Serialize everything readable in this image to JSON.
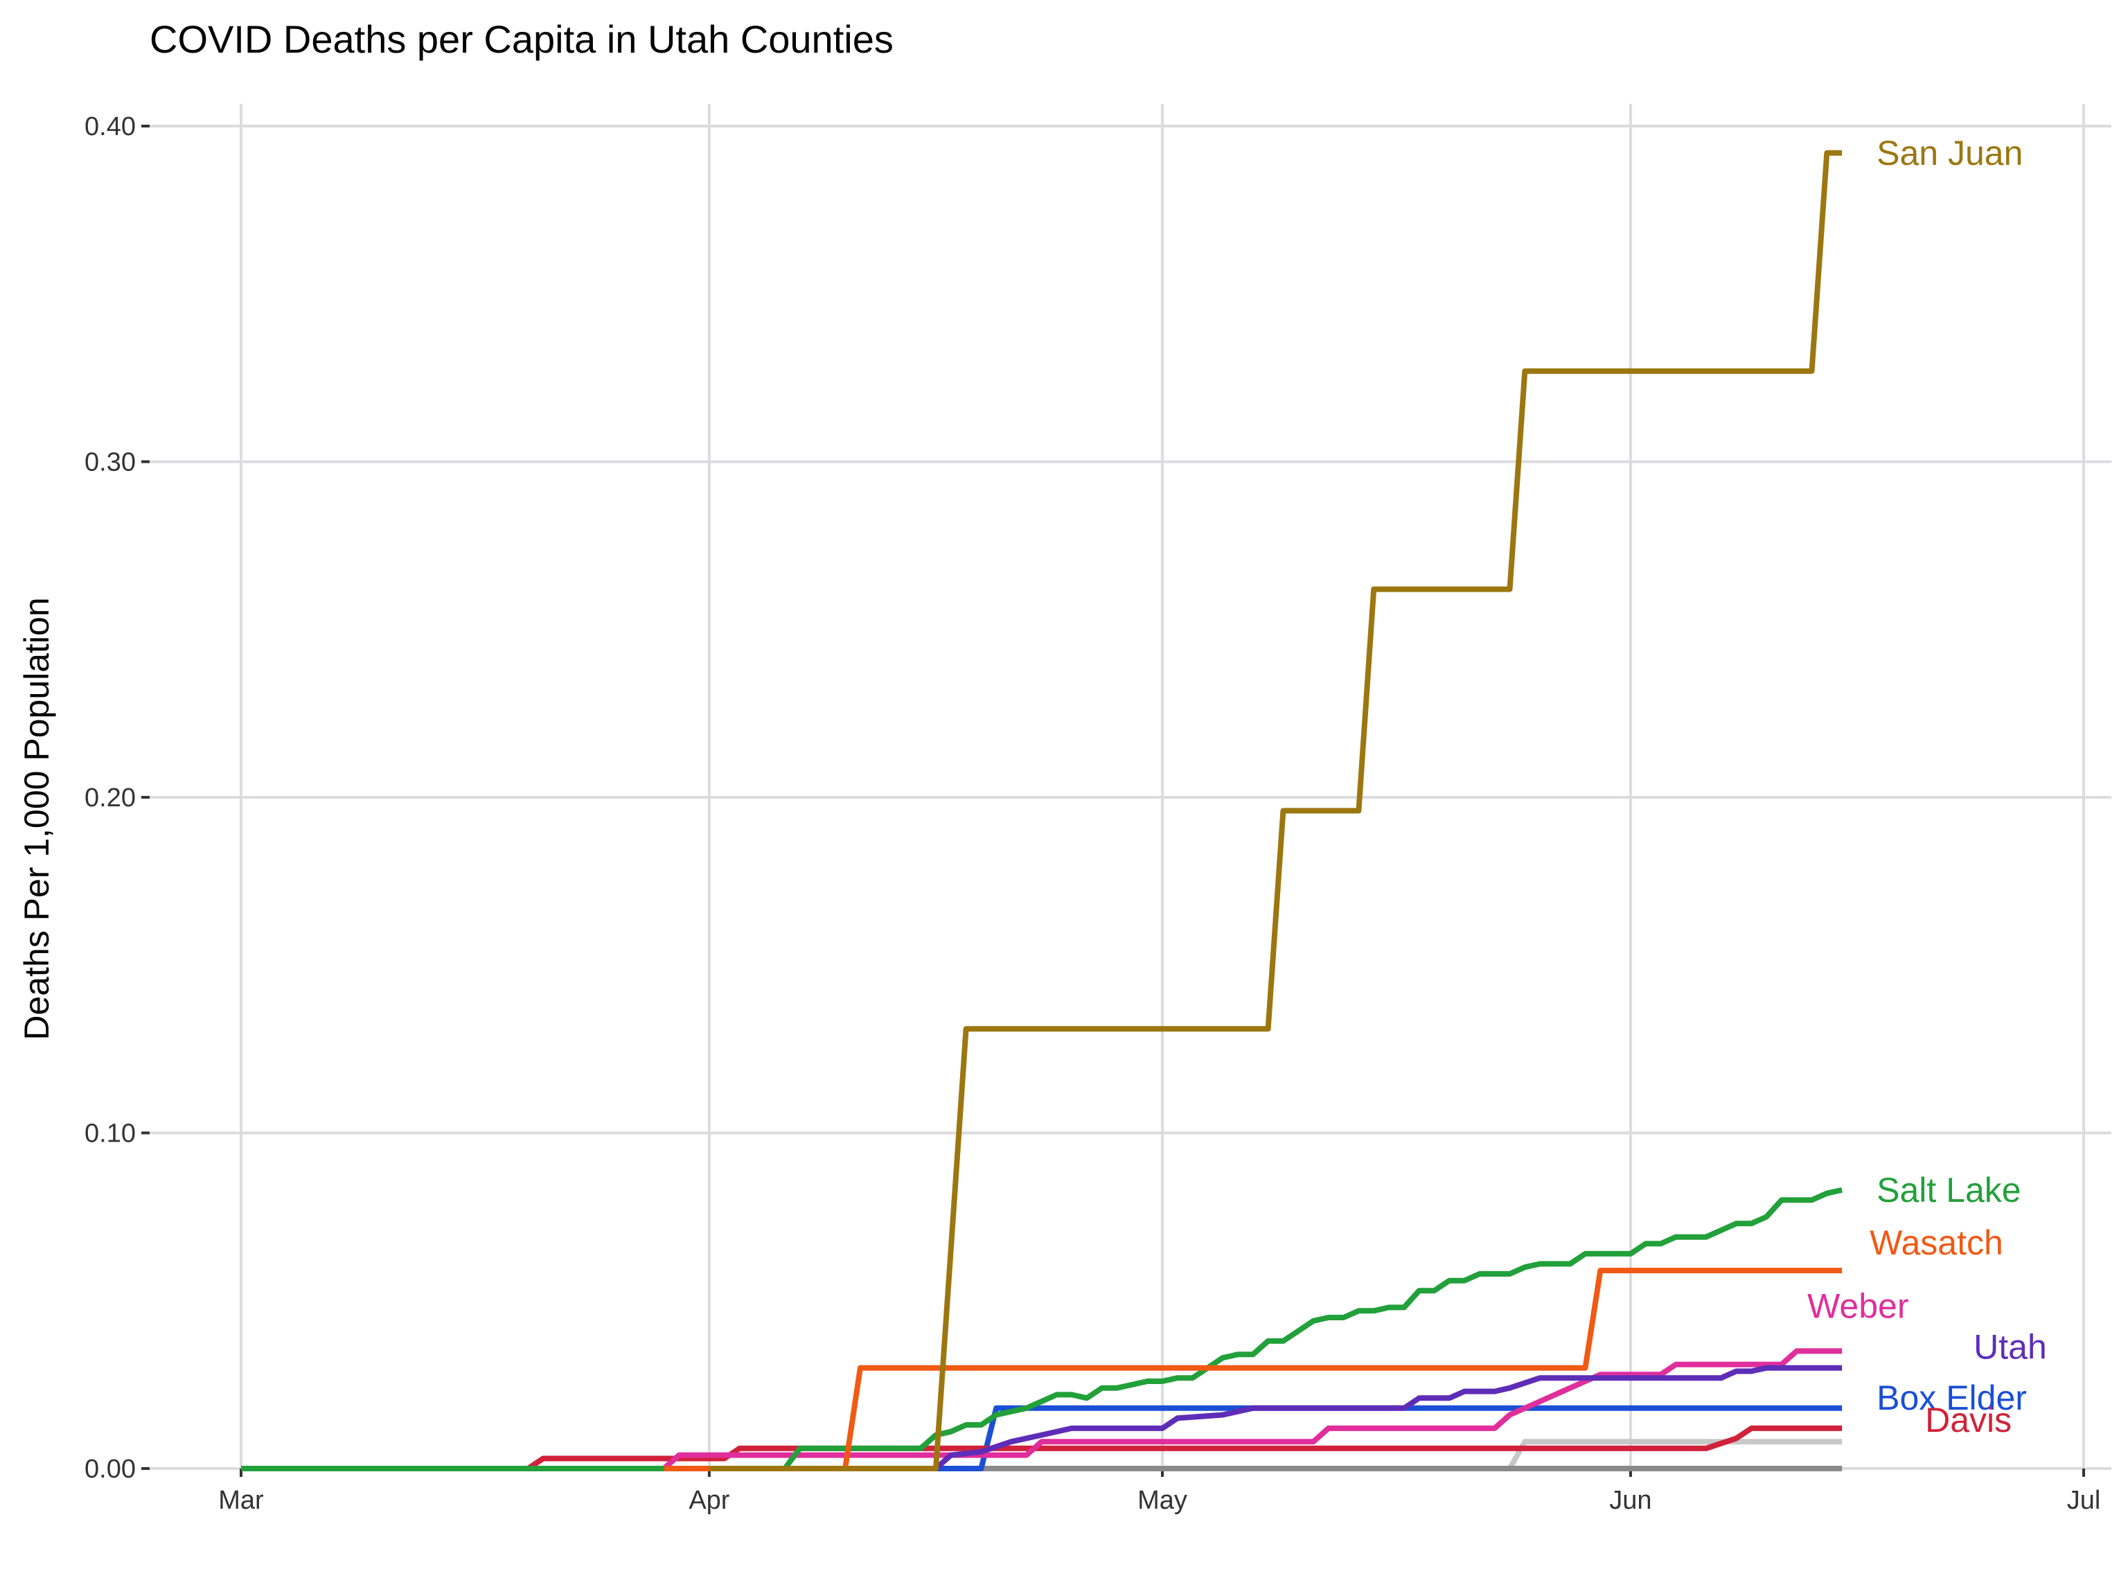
{
  "chart_data": {
    "type": "line",
    "title": "COVID Deaths per Capita in Utah Counties",
    "xlabel": "",
    "ylabel": "Deaths Per 1,000 Population",
    "x_ticks": [
      "Mar",
      "Apr",
      "May",
      "Jun",
      "Jul"
    ],
    "x_tick_dates": [
      "2020-03-01",
      "2020-04-01",
      "2020-05-01",
      "2020-06-01",
      "2020-07-01"
    ],
    "xlim": [
      "2020-03-01",
      "2020-07-01"
    ],
    "y_ticks": [
      "0.00",
      "0.10",
      "0.20",
      "0.30",
      "0.40"
    ],
    "y_tick_values": [
      0,
      0.1,
      0.2,
      0.3,
      0.4
    ],
    "ylim": [
      0,
      0.4
    ],
    "grid": true,
    "legend": "labels at line ends",
    "series": [
      {
        "name": "",
        "color": "#c8c8c8",
        "points": [
          [
            "2020-04-01",
            0
          ],
          [
            "2020-05-24",
            0
          ],
          [
            "2020-05-25",
            0.008
          ],
          [
            "2020-06-15",
            0.008
          ]
        ]
      },
      {
        "name": "",
        "color": "#8a8a8a",
        "points": [
          [
            "2020-03-01",
            0
          ],
          [
            "2020-06-15",
            0
          ]
        ]
      },
      {
        "name": "Box Elder",
        "color": "#1a4fd6",
        "points": [
          [
            "2020-04-08",
            0
          ],
          [
            "2020-04-19",
            0
          ],
          [
            "2020-04-20",
            0.018
          ],
          [
            "2020-06-15",
            0.018
          ]
        ]
      },
      {
        "name": "Davis",
        "color": "#d0223a",
        "points": [
          [
            "2020-03-20",
            0
          ],
          [
            "2020-03-21",
            0.003
          ],
          [
            "2020-04-02",
            0.003
          ],
          [
            "2020-04-03",
            0.006
          ],
          [
            "2020-04-23",
            0.006
          ],
          [
            "2020-04-24",
            0.006
          ],
          [
            "2020-06-06",
            0.006
          ],
          [
            "2020-06-08",
            0.009
          ],
          [
            "2020-06-09",
            0.012
          ],
          [
            "2020-06-15",
            0.012
          ]
        ]
      },
      {
        "name": "Weber",
        "color": "#e02e9c",
        "points": [
          [
            "2020-03-10",
            0
          ],
          [
            "2020-03-29",
            0
          ],
          [
            "2020-03-30",
            0.004
          ],
          [
            "2020-04-22",
            0.004
          ],
          [
            "2020-04-23",
            0.008
          ],
          [
            "2020-05-11",
            0.008
          ],
          [
            "2020-05-12",
            0.012
          ],
          [
            "2020-05-23",
            0.012
          ],
          [
            "2020-05-24",
            0.016
          ],
          [
            "2020-05-26",
            0.02
          ],
          [
            "2020-05-28",
            0.024
          ],
          [
            "2020-05-30",
            0.028
          ],
          [
            "2020-06-03",
            0.028
          ],
          [
            "2020-06-04",
            0.031
          ],
          [
            "2020-06-11",
            0.031
          ],
          [
            "2020-06-12",
            0.035
          ],
          [
            "2020-06-15",
            0.035
          ]
        ]
      },
      {
        "name": "Utah",
        "color": "#5e2db8",
        "points": [
          [
            "2020-04-01",
            0
          ],
          [
            "2020-04-16",
            0
          ],
          [
            "2020-04-17",
            0.004
          ],
          [
            "2020-04-19",
            0.005
          ],
          [
            "2020-04-21",
            0.008
          ],
          [
            "2020-04-23",
            0.01
          ],
          [
            "2020-04-25",
            0.012
          ],
          [
            "2020-05-01",
            0.012
          ],
          [
            "2020-05-02",
            0.015
          ],
          [
            "2020-05-05",
            0.016
          ],
          [
            "2020-05-07",
            0.018
          ],
          [
            "2020-05-17",
            0.018
          ],
          [
            "2020-05-18",
            0.021
          ],
          [
            "2020-05-20",
            0.021
          ],
          [
            "2020-05-21",
            0.023
          ],
          [
            "2020-05-23",
            0.023
          ],
          [
            "2020-05-24",
            0.024
          ],
          [
            "2020-05-26",
            0.027
          ],
          [
            "2020-06-02",
            0.027
          ],
          [
            "2020-06-07",
            0.027
          ],
          [
            "2020-06-08",
            0.029
          ],
          [
            "2020-06-09",
            0.029
          ],
          [
            "2020-06-10",
            0.03
          ],
          [
            "2020-06-15",
            0.03
          ]
        ]
      },
      {
        "name": "Salt Lake",
        "color": "#22a03a",
        "points": [
          [
            "2020-03-01",
            0
          ],
          [
            "2020-04-06",
            0
          ],
          [
            "2020-04-07",
            0.006
          ],
          [
            "2020-04-15",
            0.006
          ],
          [
            "2020-04-16",
            0.01
          ],
          [
            "2020-04-17",
            0.011
          ],
          [
            "2020-04-18",
            0.013
          ],
          [
            "2020-04-19",
            0.013
          ],
          [
            "2020-04-20",
            0.016
          ],
          [
            "2020-04-22",
            0.018
          ],
          [
            "2020-04-24",
            0.022
          ],
          [
            "2020-04-25",
            0.022
          ],
          [
            "2020-04-26",
            0.021
          ],
          [
            "2020-04-27",
            0.024
          ],
          [
            "2020-04-28",
            0.024
          ],
          [
            "2020-04-29",
            0.025
          ],
          [
            "2020-04-30",
            0.026
          ],
          [
            "2020-05-01",
            0.026
          ],
          [
            "2020-05-02",
            0.027
          ],
          [
            "2020-05-03",
            0.027
          ],
          [
            "2020-05-04",
            0.03
          ],
          [
            "2020-05-05",
            0.033
          ],
          [
            "2020-05-06",
            0.034
          ],
          [
            "2020-05-07",
            0.034
          ],
          [
            "2020-05-08",
            0.038
          ],
          [
            "2020-05-09",
            0.038
          ],
          [
            "2020-05-10",
            0.041
          ],
          [
            "2020-05-11",
            0.044
          ],
          [
            "2020-05-12",
            0.045
          ],
          [
            "2020-05-13",
            0.045
          ],
          [
            "2020-05-14",
            0.047
          ],
          [
            "2020-05-15",
            0.047
          ],
          [
            "2020-05-16",
            0.048
          ],
          [
            "2020-05-17",
            0.048
          ],
          [
            "2020-05-18",
            0.053
          ],
          [
            "2020-05-19",
            0.053
          ],
          [
            "2020-05-20",
            0.056
          ],
          [
            "2020-05-21",
            0.056
          ],
          [
            "2020-05-22",
            0.058
          ],
          [
            "2020-05-24",
            0.058
          ],
          [
            "2020-05-25",
            0.06
          ],
          [
            "2020-05-26",
            0.061
          ],
          [
            "2020-05-28",
            0.061
          ],
          [
            "2020-05-29",
            0.064
          ],
          [
            "2020-06-01",
            0.064
          ],
          [
            "2020-06-02",
            0.067
          ],
          [
            "2020-06-03",
            0.067
          ],
          [
            "2020-06-04",
            0.069
          ],
          [
            "2020-06-06",
            0.069
          ],
          [
            "2020-06-08",
            0.073
          ],
          [
            "2020-06-09",
            0.073
          ],
          [
            "2020-06-10",
            0.075
          ],
          [
            "2020-06-11",
            0.08
          ],
          [
            "2020-06-13",
            0.08
          ],
          [
            "2020-06-14",
            0.082
          ],
          [
            "2020-06-15",
            0.083
          ]
        ]
      },
      {
        "name": "Wasatch",
        "color": "#f05a14",
        "points": [
          [
            "2020-03-29",
            0
          ],
          [
            "2020-04-10",
            0
          ],
          [
            "2020-04-11",
            0.03
          ],
          [
            "2020-05-29",
            0.03
          ],
          [
            "2020-05-30",
            0.059
          ],
          [
            "2020-06-15",
            0.059
          ]
        ]
      },
      {
        "name": "San Juan",
        "color": "#9c7710",
        "points": [
          [
            "2020-04-01",
            0
          ],
          [
            "2020-04-16",
            0
          ],
          [
            "2020-04-18",
            0.131
          ],
          [
            "2020-05-08",
            0.131
          ],
          [
            "2020-05-09",
            0.196
          ],
          [
            "2020-05-14",
            0.196
          ],
          [
            "2020-05-15",
            0.262
          ],
          [
            "2020-05-24",
            0.262
          ],
          [
            "2020-05-25",
            0.327
          ],
          [
            "2020-06-13",
            0.327
          ],
          [
            "2020-06-14",
            0.392
          ],
          [
            "2020-06-15",
            0.392
          ]
        ]
      }
    ]
  }
}
